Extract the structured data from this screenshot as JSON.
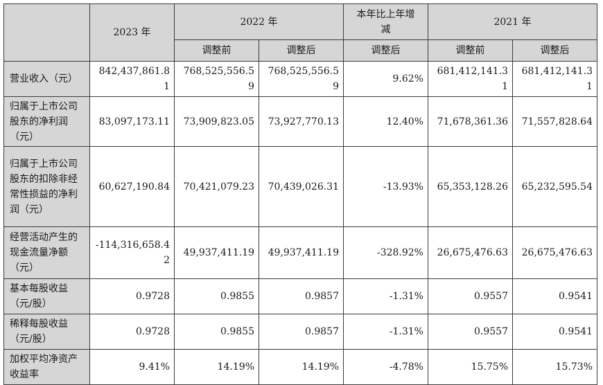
{
  "header": {
    "blank": "",
    "y2023": "2023 年",
    "y2022": "2022 年",
    "change": "本年比上年增减",
    "y2021": "2021 年",
    "before": "调整前",
    "after": "调整后",
    "change_after": "调整后"
  },
  "rows": [
    {
      "label": "营业收入（元）",
      "v2023": "842,437,861.81",
      "v2022_before": "768,525,556.59",
      "v2022_after": "768,525,556.59",
      "change": "9.62%",
      "v2021_before": "681,412,141.31",
      "v2021_after": "681,412,141.31"
    },
    {
      "label": "归属于上市公司股东的净利润（元）",
      "v2023": "83,097,173.11",
      "v2022_before": "73,909,823.05",
      "v2022_after": "73,927,770.13",
      "change": "12.40%",
      "v2021_before": "71,678,361.36",
      "v2021_after": "71,557,828.64"
    },
    {
      "label": "归属于上市公司股东的扣除非经常性损益的净利润（元）",
      "v2023": "60,627,190.84",
      "v2022_before": "70,421,079.23",
      "v2022_after": "70,439,026.31",
      "change": "-13.93%",
      "v2021_before": "65,353,128.26",
      "v2021_after": "65,232,595.54"
    },
    {
      "label": "经营活动产生的现金流量净额（元）",
      "v2023": "-114,316,658.42",
      "v2022_before": "49,937,411.19",
      "v2022_after": "49,937,411.19",
      "change": "-328.92%",
      "v2021_before": "26,675,476.63",
      "v2021_after": "26,675,476.63"
    },
    {
      "label": "基本每股收益（元/股）",
      "v2023": "0.9728",
      "v2022_before": "0.9855",
      "v2022_after": "0.9857",
      "change": "-1.31%",
      "v2021_before": "0.9557",
      "v2021_after": "0.9541"
    },
    {
      "label": "稀释每股收益（元/股）",
      "v2023": "0.9728",
      "v2022_before": "0.9855",
      "v2022_after": "0.9857",
      "change": "-1.31%",
      "v2021_before": "0.9557",
      "v2021_after": "0.9541"
    },
    {
      "label": "加权平均净资产收益率",
      "v2023": "9.41%",
      "v2022_before": "14.19%",
      "v2022_after": "14.19%",
      "change": "-4.78%",
      "v2021_before": "15.75%",
      "v2021_after": "15.73%"
    }
  ]
}
